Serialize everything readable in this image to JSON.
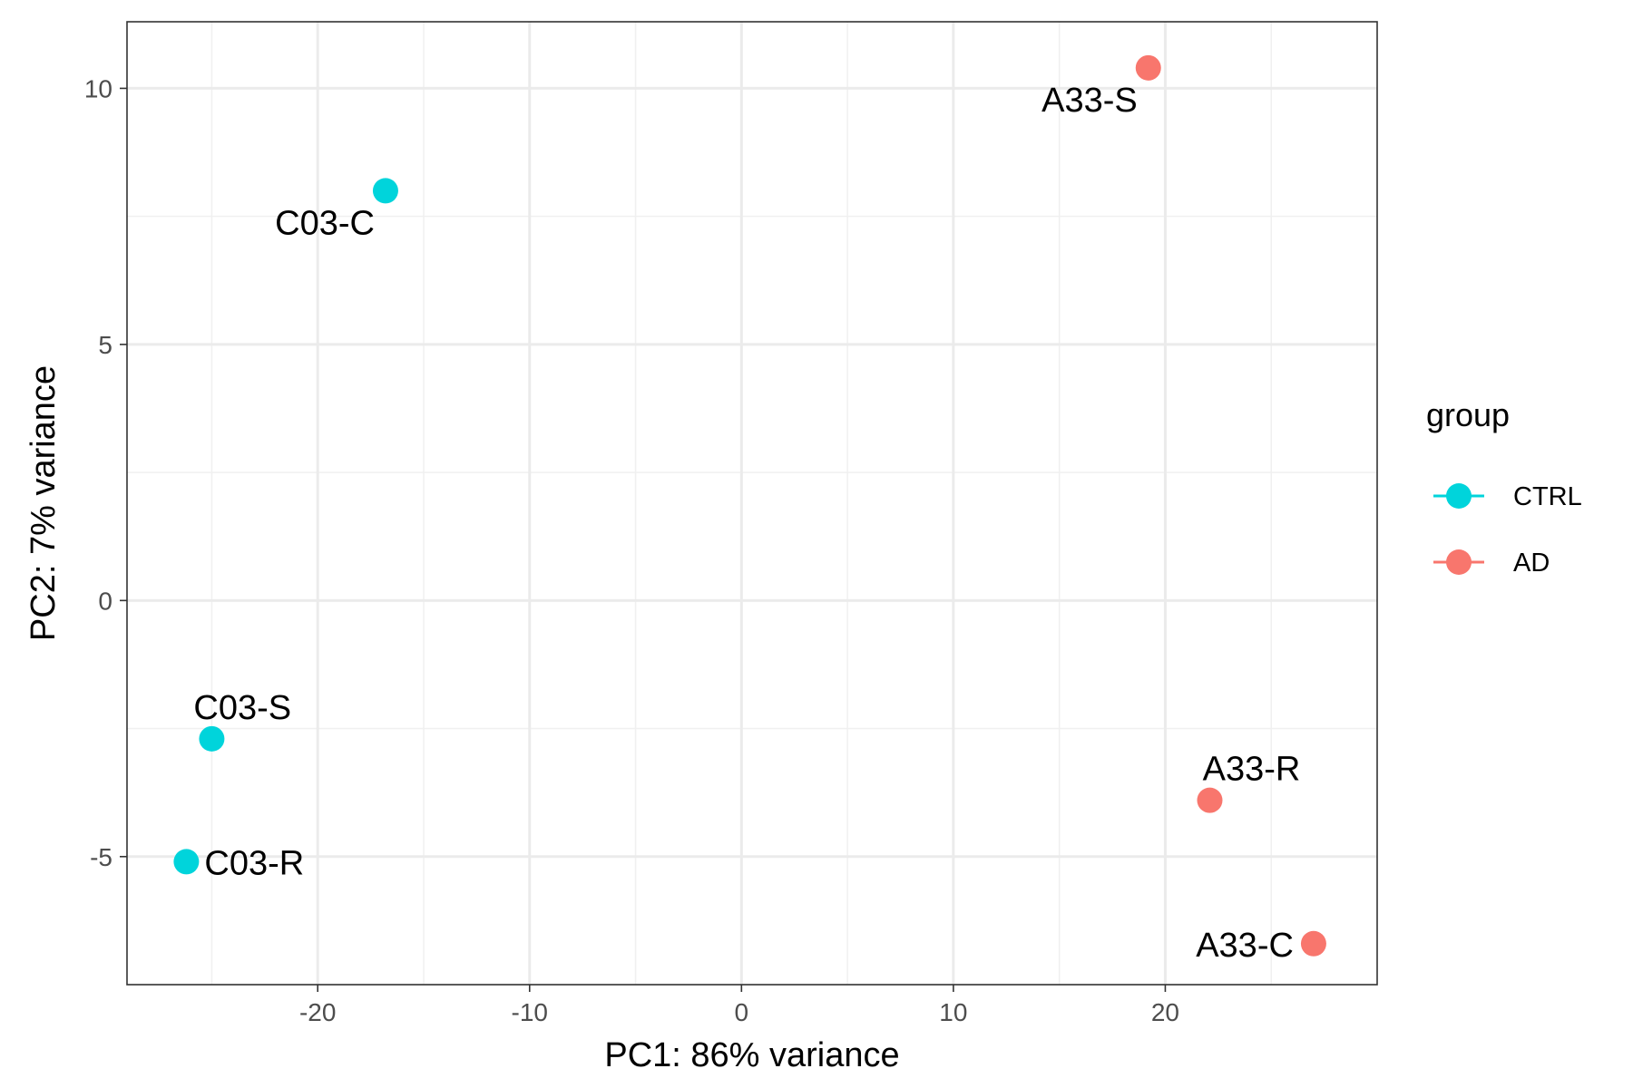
{
  "chart_data": {
    "type": "scatter",
    "xlabel": "PC1: 86% variance",
    "ylabel": "PC2: 7% variance",
    "xlim": [
      -29,
      30
    ],
    "ylim": [
      -7.5,
      11.3
    ],
    "x_ticks": [
      -20,
      -10,
      0,
      10,
      20
    ],
    "y_ticks": [
      -5,
      0,
      5,
      10
    ],
    "x_tick_labels": [
      "-20",
      "-10",
      "0",
      "10",
      "20"
    ],
    "y_tick_labels": [
      "-5",
      "0",
      "5",
      "10"
    ],
    "grid": true,
    "legend": {
      "title": "group",
      "position": "right",
      "entries": [
        {
          "label": "CTRL",
          "color": "#00D4DB"
        },
        {
          "label": "AD",
          "color": "#F8766D"
        }
      ]
    },
    "series": [
      {
        "name": "CTRL",
        "color": "#00D4DB",
        "points": [
          {
            "label": "C03-C",
            "x": -16.8,
            "y": 8.0,
            "label_pos": "below-left"
          },
          {
            "label": "C03-S",
            "x": -25.0,
            "y": -2.7,
            "label_pos": "above-right"
          },
          {
            "label": "C03-R",
            "x": -26.2,
            "y": -5.1,
            "label_pos": "right"
          }
        ]
      },
      {
        "name": "AD",
        "color": "#F8766D",
        "points": [
          {
            "label": "A33-S",
            "x": 19.2,
            "y": 10.4,
            "label_pos": "below-left"
          },
          {
            "label": "A33-R",
            "x": 22.1,
            "y": -3.9,
            "label_pos": "above"
          },
          {
            "label": "A33-C",
            "x": 27.0,
            "y": -6.7,
            "label_pos": "left"
          }
        ]
      }
    ]
  }
}
